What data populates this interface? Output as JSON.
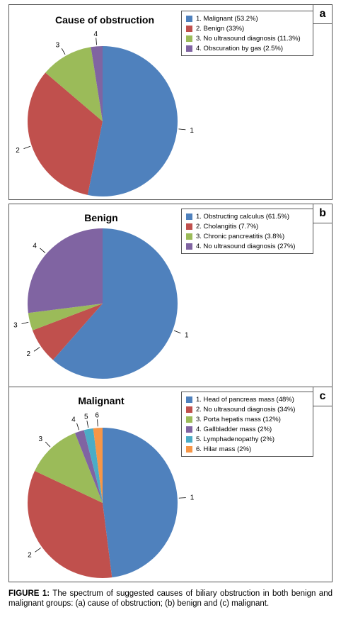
{
  "chart_data": [
    {
      "type": "pie",
      "title": "Cause of obstruction",
      "panel_letter": "a",
      "categories": [
        "1. Malignant (53.2%)",
        "2. Benign (33%)",
        "3. No ultrasound diagnosis (11.3%)",
        "4. Obscuration by gas (2.5%)"
      ],
      "slice_labels": [
        "1",
        "2",
        "3",
        "4"
      ],
      "values": [
        53.2,
        33,
        11.3,
        2.5
      ],
      "colors": [
        "#4F81BD",
        "#C0504D",
        "#9BBB59",
        "#8064A2"
      ],
      "legend": "top-right"
    },
    {
      "type": "pie",
      "title": "Benign",
      "panel_letter": "b",
      "categories": [
        "1. Obstructing calculus (61.5%)",
        "2. Cholangitis (7.7%)",
        "3. Chronic pancreatitis (3.8%)",
        "4. No ultrasound  diagnosis (27%)"
      ],
      "slice_labels": [
        "1",
        "2",
        "3",
        "4"
      ],
      "values": [
        61.5,
        7.7,
        3.8,
        27
      ],
      "colors": [
        "#4F81BD",
        "#C0504D",
        "#9BBB59",
        "#8064A2"
      ],
      "legend": "top-right"
    },
    {
      "type": "pie",
      "title": "Malignant",
      "panel_letter": "c",
      "categories": [
        "1. Head of pancreas mass (48%)",
        "2. No ultrasound  diagnosis (34%)",
        "3. Porta hepatis mass (12%)",
        "4. Gallbladder mass (2%)",
        "5. Lymphadenopathy (2%)",
        "6. Hilar mass (2%)"
      ],
      "slice_labels": [
        "1",
        "2",
        "3",
        "4",
        "5",
        "6"
      ],
      "values": [
        48,
        34,
        12,
        2,
        2,
        2
      ],
      "colors": [
        "#4F81BD",
        "#C0504D",
        "#9BBB59",
        "#8064A2",
        "#4BACC6",
        "#F79646"
      ],
      "legend": "top-right"
    }
  ],
  "caption": {
    "label": "FIGURE 1:",
    "text": " The spectrum of suggested causes of biliary obstruction in both benign and malignant groups: (a) cause of obstruction; (b) benign and (c) malignant."
  }
}
